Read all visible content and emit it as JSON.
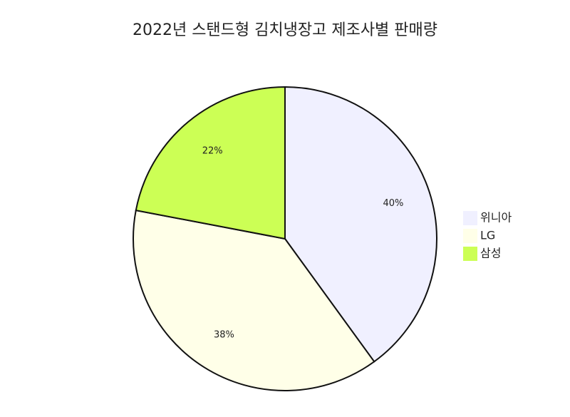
{
  "chart_data": {
    "type": "pie",
    "title": "2022년 스탠드형 김치냉장고 제조사별 판매량",
    "categories": [
      "위니아",
      "LG",
      "삼성"
    ],
    "values": [
      40,
      38,
      22
    ],
    "value_labels": [
      "40%",
      "38%",
      "22%"
    ],
    "colors": [
      "#f0f0ff",
      "#ffffe8",
      "#ccff55"
    ],
    "legend": "right"
  }
}
